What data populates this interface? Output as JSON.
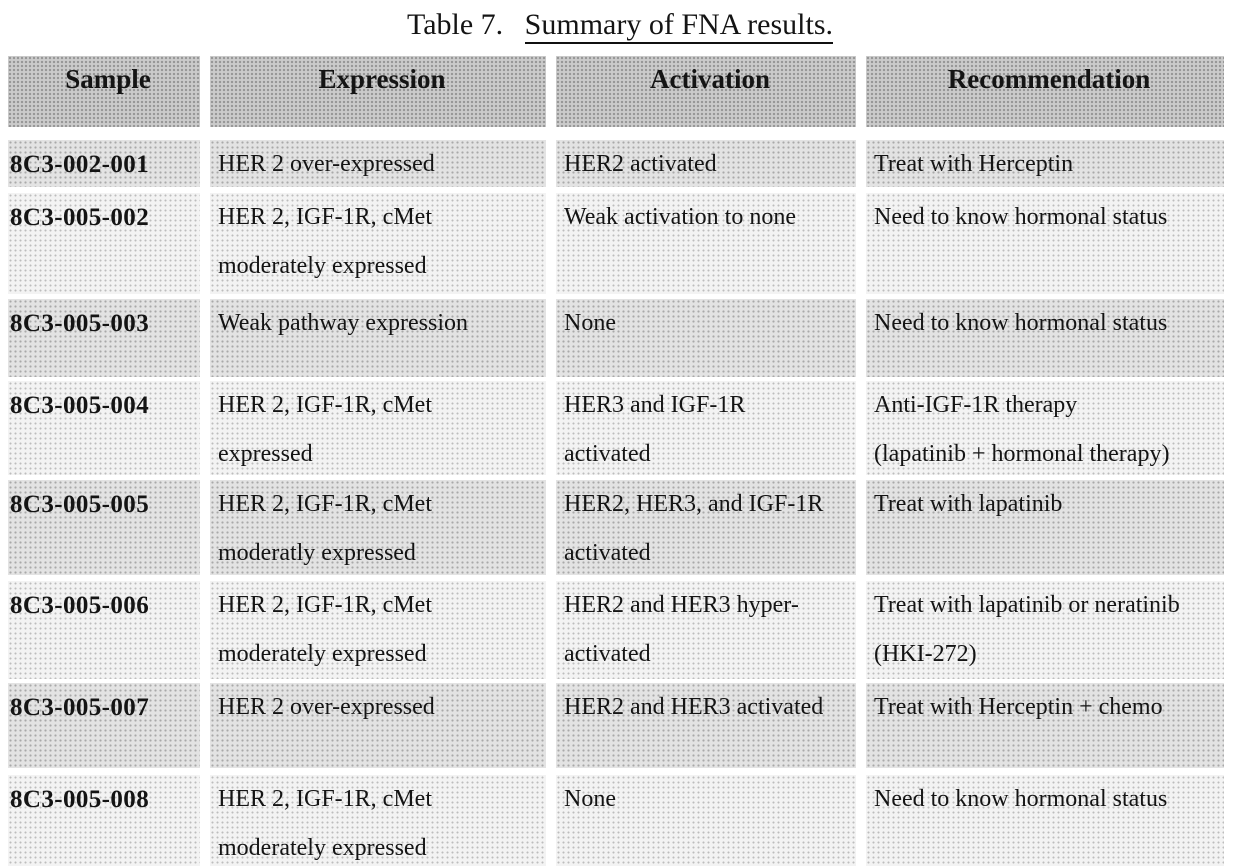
{
  "title": {
    "prefix": "Table 7.",
    "caption": "Summary of FNA results."
  },
  "table": {
    "columns": [
      "Sample",
      "Expression",
      "Activation",
      "Recommendation"
    ],
    "rows": [
      {
        "sample": "8C3-002-001",
        "expression": "HER 2 over-expressed",
        "activation": "HER2 activated",
        "recommendation": "Treat with Herceptin"
      },
      {
        "sample": "8C3-005-002",
        "expression": "HER 2, IGF-1R, cMet\nmoderately expressed",
        "activation": "Weak activation to none",
        "recommendation": "Need to know hormonal status"
      },
      {
        "sample": "8C3-005-003",
        "expression": "Weak pathway expression",
        "activation": "None",
        "recommendation": "Need to know hormonal status"
      },
      {
        "sample": "8C3-005-004",
        "expression": "HER 2, IGF-1R, cMet\nexpressed",
        "activation": "HER3 and IGF-1R\nactivated",
        "recommendation": "Anti-IGF-1R therapy\n(lapatinib + hormonal therapy)"
      },
      {
        "sample": "8C3-005-005",
        "expression": "HER 2, IGF-1R, cMet\nmoderatly expressed",
        "activation": "HER2, HER3, and IGF-1R\nactivated",
        "recommendation": "Treat with lapatinib"
      },
      {
        "sample": "8C3-005-006",
        "expression": "HER 2, IGF-1R, cMet\nmoderately expressed",
        "activation": "HER2 and HER3 hyper-\nactivated",
        "recommendation": "Treat with lapatinib or neratinib\n(HKI-272)"
      },
      {
        "sample": "8C3-005-007",
        "expression": "HER 2 over-expressed",
        "activation": "HER2 and HER3 activated",
        "recommendation": "Treat with Herceptin + chemo"
      },
      {
        "sample": "8C3-005-008",
        "expression": "HER 2, IGF-1R, cMet\nmoderately expressed",
        "activation": "None",
        "recommendation": "Need to know hormonal status"
      }
    ]
  },
  "colors": {
    "header_shade": "#cbcbcb",
    "row_shade_dark": "#e3e3e3",
    "row_shade_light": "#f3f3f3",
    "text": "#141414"
  }
}
